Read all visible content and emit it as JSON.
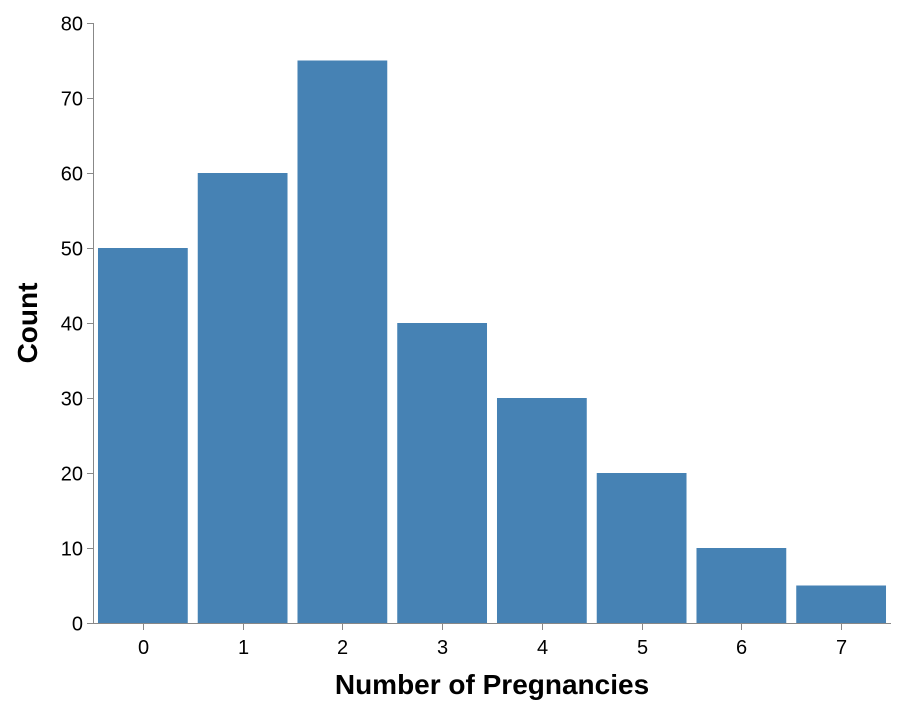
{
  "chart_data": {
    "type": "bar",
    "categories": [
      "0",
      "1",
      "2",
      "3",
      "4",
      "5",
      "6",
      "7"
    ],
    "values": [
      50,
      60,
      75,
      40,
      30,
      20,
      10,
      5
    ],
    "xlabel": "Number of Pregnancies",
    "ylabel": "Count",
    "ylim": [
      0,
      80
    ],
    "yticks": [
      0,
      10,
      20,
      30,
      40,
      50,
      60,
      70,
      80
    ],
    "grid": false,
    "bar_color": "#4682b4",
    "axis_color": "#888888"
  }
}
